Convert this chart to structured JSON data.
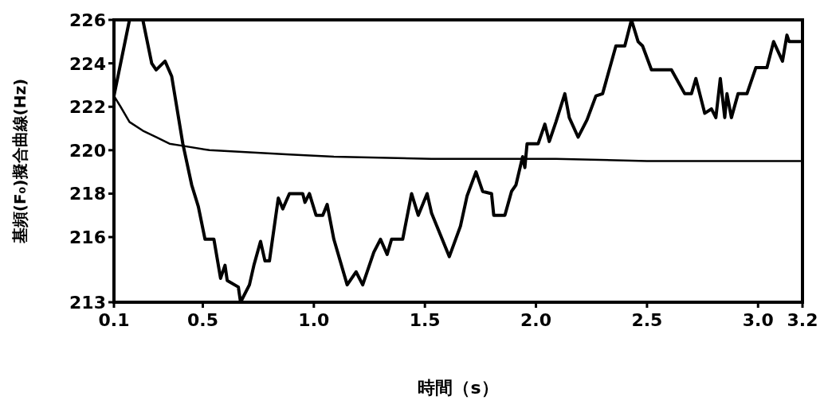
{
  "chart_data": {
    "type": "line",
    "xlabel": "時間（s）",
    "ylabel": "基頻(F₀)擬合曲線(Hz)",
    "xlim": [
      0.1,
      3.2
    ],
    "xticks": [
      0.1,
      0.5,
      {
        "value": 1.0,
        "label": "1.0"
      },
      1.5,
      {
        "value": 2.0,
        "label": "2.0"
      },
      2.5,
      {
        "value": 3.0,
        "label": "3.0"
      },
      3.2
    ],
    "ylim": [
      213,
      226
    ],
    "yticks": [
      213,
      216,
      218,
      220,
      222,
      224,
      226
    ],
    "grid": false,
    "marker": "none",
    "line_style": "solid",
    "series": [
      {
        "color": "#000000",
        "x": [
          0.1,
          0.17,
          0.23,
          0.27,
          0.29,
          0.33,
          0.36,
          0.41,
          0.45,
          0.48,
          0.51,
          0.55,
          0.58,
          0.6,
          0.61,
          0.66,
          0.67,
          0.71,
          0.73,
          0.76,
          0.78,
          0.8,
          0.84,
          0.86,
          0.89,
          0.95,
          0.96,
          0.98,
          1.01,
          1.04,
          1.06,
          1.09,
          1.15,
          1.19,
          1.22,
          1.27,
          1.3,
          1.33,
          1.35,
          1.4,
          1.44,
          1.47,
          1.51,
          1.53,
          1.61,
          1.66,
          1.69,
          1.73,
          1.76,
          1.8,
          1.81,
          1.86,
          1.89,
          1.91,
          1.94,
          1.95,
          1.96,
          2.01,
          2.04,
          2.06,
          2.09,
          2.13,
          2.15,
          2.19,
          2.23,
          2.27,
          2.3,
          2.36,
          2.4,
          2.43,
          2.46,
          2.48,
          2.52,
          2.59,
          2.61,
          2.67,
          2.7,
          2.72,
          2.76,
          2.79,
          2.81,
          2.83,
          2.85,
          2.86,
          2.88,
          2.91,
          2.95,
          2.99,
          3.04,
          3.07,
          3.11,
          3.13,
          3.14,
          3.19
        ],
        "values": [
          222.5,
          226,
          226,
          224.0,
          223.7,
          224.1,
          223.4,
          220.3,
          218.4,
          217.4,
          215.9,
          215.9,
          214.1,
          214.7,
          214.0,
          213.7,
          213.0,
          213.8,
          214.7,
          215.8,
          214.9,
          214.9,
          217.8,
          217.3,
          218.0,
          218.0,
          217.6,
          218.0,
          217.0,
          217.0,
          217.5,
          215.9,
          213.8,
          214.4,
          213.8,
          215.3,
          215.9,
          215.2,
          215.9,
          215.9,
          218.0,
          217.0,
          218.0,
          217.1,
          215.1,
          216.5,
          217.9,
          219.0,
          218.1,
          218.0,
          217.0,
          217.0,
          218.1,
          218.4,
          219.7,
          219.2,
          220.3,
          220.3,
          221.2,
          220.4,
          221.3,
          222.6,
          221.5,
          220.6,
          221.4,
          222.5,
          222.6,
          224.8,
          224.8,
          226,
          225.0,
          224.8,
          223.7,
          223.7,
          223.7,
          222.6,
          222.6,
          223.3,
          221.7,
          221.9,
          221.5,
          223.3,
          221.5,
          222.6,
          221.5,
          222.6,
          222.6,
          223.8,
          223.8,
          225.0,
          224.1,
          225.3,
          225.0,
          225.0
        ]
      },
      {
        "color": "#000000",
        "x": [
          0.1,
          0.13,
          0.17,
          0.23,
          0.29,
          0.35,
          0.41,
          0.53,
          0.71,
          0.89,
          1.09,
          1.53,
          2.09,
          2.5,
          3.19
        ],
        "values": [
          222.5,
          222.0,
          221.3,
          220.9,
          220.6,
          220.3,
          220.2,
          220.0,
          219.9,
          219.8,
          219.7,
          219.6,
          219.6,
          219.5,
          219.5
        ]
      }
    ]
  }
}
